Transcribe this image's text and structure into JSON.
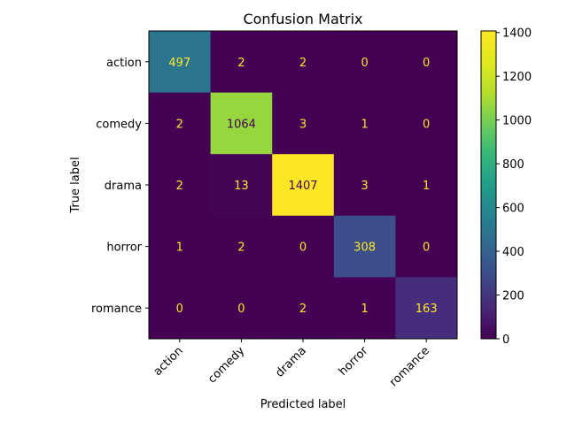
{
  "chart_data": {
    "type": "heatmap",
    "title": "Confusion Matrix",
    "xlabel": "Predicted label",
    "ylabel": "True label",
    "x_categories": [
      "action",
      "comedy",
      "drama",
      "horror",
      "romance"
    ],
    "y_categories": [
      "action",
      "comedy",
      "drama",
      "horror",
      "romance"
    ],
    "values": [
      [
        497,
        2,
        2,
        0,
        0
      ],
      [
        2,
        1064,
        3,
        1,
        0
      ],
      [
        2,
        13,
        1407,
        3,
        1
      ],
      [
        1,
        2,
        0,
        308,
        0
      ],
      [
        0,
        0,
        2,
        1,
        163
      ]
    ],
    "colormap": "viridis",
    "colorbar": {
      "range": [
        0,
        1407
      ],
      "ticks": [
        "0",
        "200",
        "400",
        "600",
        "800",
        "1000",
        "1200",
        "1400"
      ]
    }
  }
}
